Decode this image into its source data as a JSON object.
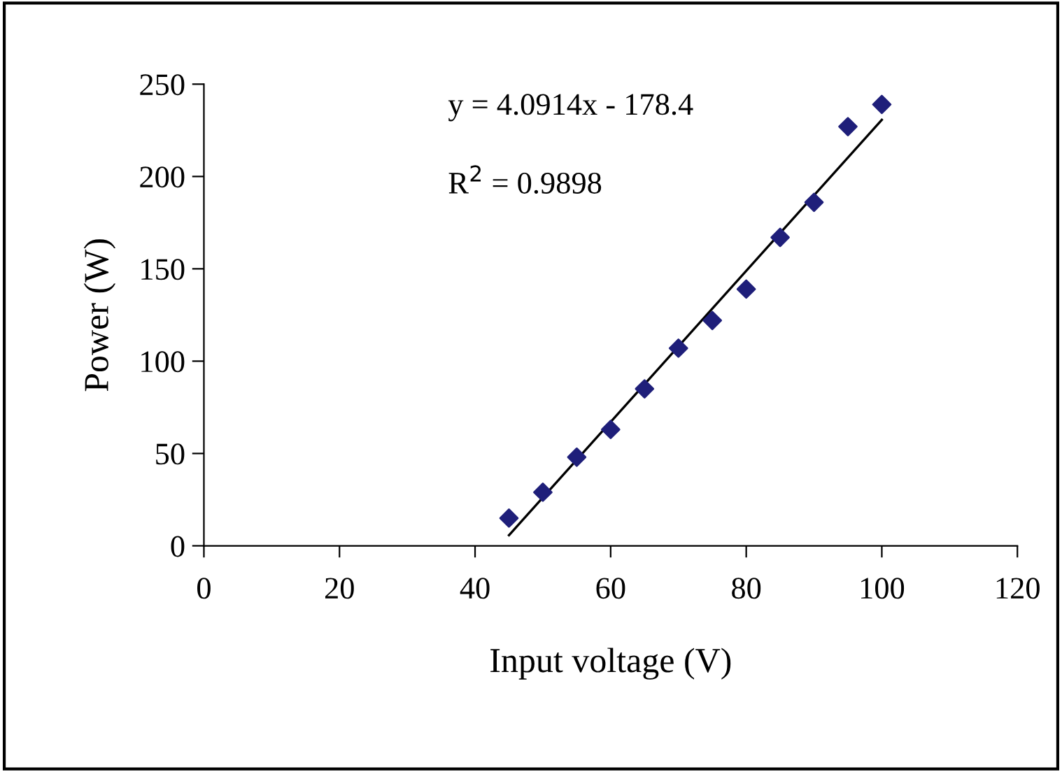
{
  "chart_data": {
    "type": "scatter",
    "xlabel": "Input voltage (V)",
    "ylabel": "Power (W)",
    "x": [
      45,
      50,
      55,
      60,
      65,
      70,
      75,
      80,
      85,
      90,
      95,
      100
    ],
    "series": [
      {
        "color": "#1f1f7a",
        "marker": "diamond",
        "values": [
          15,
          29,
          48,
          63,
          85,
          107,
          122,
          139,
          167,
          186,
          227,
          239
        ]
      },
      {
        "type": "line",
        "color": "#000000",
        "x": [
          45,
          100
        ],
        "values": [
          5.7,
          230.7
        ]
      }
    ],
    "xlim": [
      0,
      120
    ],
    "xticks": [
      0,
      20,
      40,
      60,
      80,
      100,
      120
    ],
    "ylim": [
      0,
      250
    ],
    "yticks": [
      0,
      50,
      100,
      150,
      200,
      250
    ],
    "annotations": [
      "y = 4.0914x - 178.4",
      "R$^{2}$ = 0.9898"
    ],
    "grid": false,
    "legend": false
  }
}
